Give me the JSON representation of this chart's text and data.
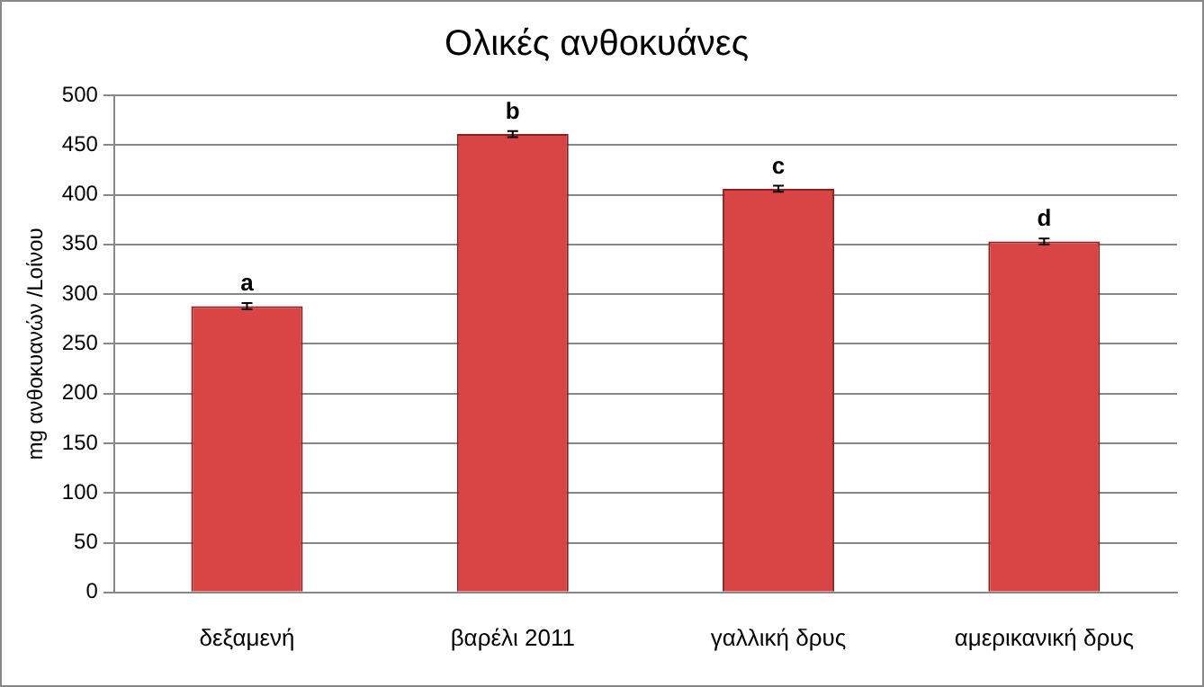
{
  "chart_data": {
    "type": "bar",
    "title": "Ολικές ανθοκυάνες",
    "ylabel": "mg ανθοκυανών /Lοίνου",
    "categories": [
      "δεξαμενή",
      "βαρέλι 2011",
      "γαλλική δρυς",
      "αμερικανική δρυς"
    ],
    "values": [
      288,
      461,
      406,
      353
    ],
    "errors": [
      3,
      3,
      3,
      3
    ],
    "color": "#d94444",
    "ylim": [
      0,
      500
    ],
    "yticks": [
      0,
      50,
      100,
      150,
      200,
      250,
      300,
      350,
      400,
      450,
      500
    ],
    "grid": "y",
    "legend": false,
    "annotations": [
      {
        "text": "a",
        "x": "δεξαμενή",
        "y": 291
      },
      {
        "text": "b",
        "x": "βαρέλι 2011",
        "y": 464
      },
      {
        "text": "c",
        "x": "γαλλική δρυς",
        "y": 409
      },
      {
        "text": "d",
        "x": "αμερικανική δρυς",
        "y": 356
      }
    ]
  }
}
